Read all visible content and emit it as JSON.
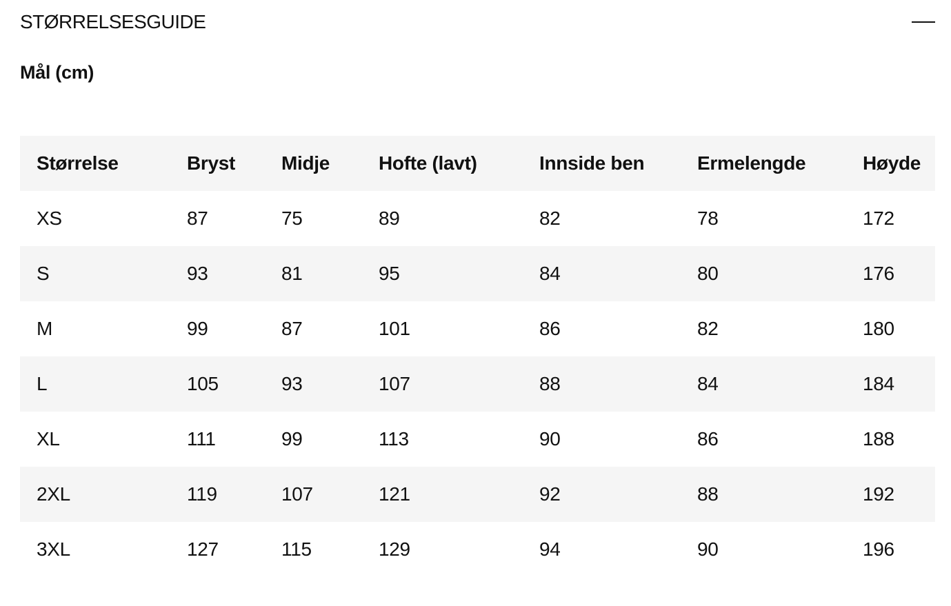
{
  "header": {
    "title": "STØRRELSESGUIDE",
    "collapse_icon": "minus-icon"
  },
  "subtitle": "Mål (cm)",
  "table": {
    "columns": [
      "Størrelse",
      "Bryst",
      "Midje",
      "Hofte (lavt)",
      "Innside ben",
      "Ermelengde",
      "Høyde"
    ],
    "rows": [
      [
        "XS",
        "87",
        "75",
        "89",
        "82",
        "78",
        "172"
      ],
      [
        "S",
        "93",
        "81",
        "95",
        "84",
        "80",
        "176"
      ],
      [
        "M",
        "99",
        "87",
        "101",
        "86",
        "82",
        "180"
      ],
      [
        "L",
        "105",
        "93",
        "107",
        "88",
        "84",
        "184"
      ],
      [
        "XL",
        "111",
        "99",
        "113",
        "90",
        "86",
        "188"
      ],
      [
        "2XL",
        "119",
        "107",
        "121",
        "92",
        "88",
        "192"
      ],
      [
        "3XL",
        "127",
        "115",
        "129",
        "94",
        "90",
        "196"
      ]
    ]
  }
}
